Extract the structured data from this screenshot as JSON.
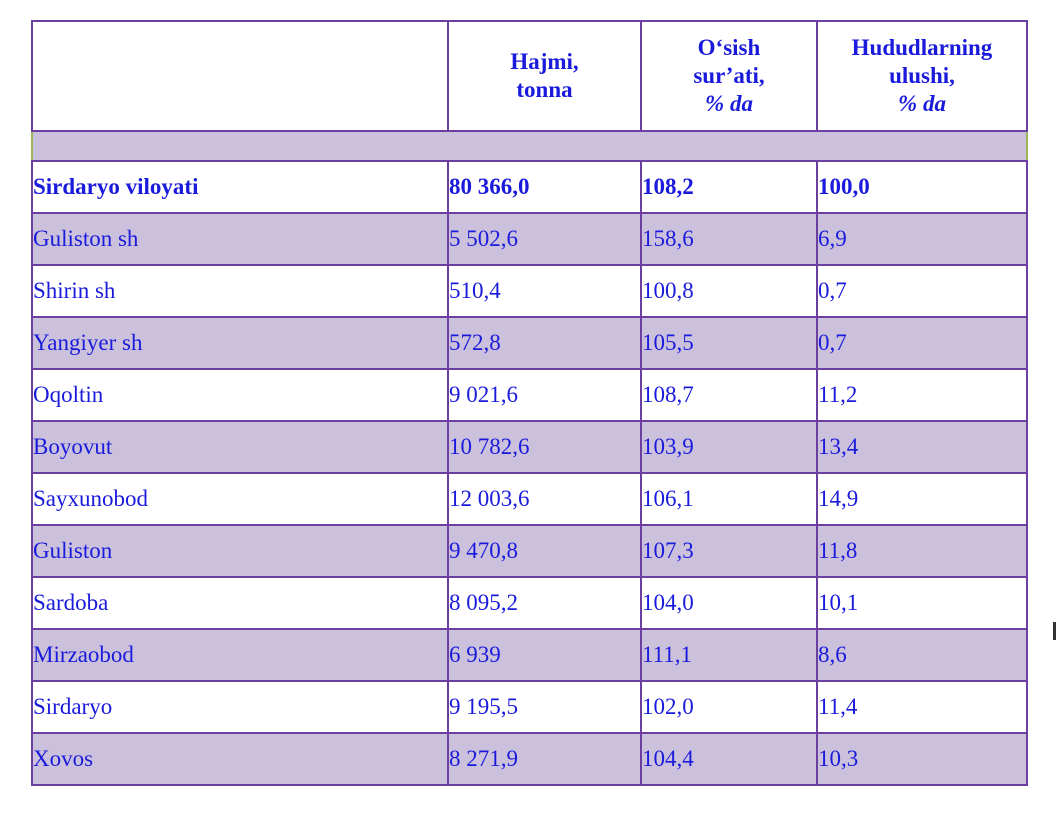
{
  "header": {
    "col_region": "",
    "col_volume": [
      "Hajmi,",
      "tonna"
    ],
    "col_growth": [
      "O‘sish",
      "sur’ati,",
      "% da"
    ],
    "col_share": [
      "Hududlarning",
      "ulushi,",
      "% da"
    ]
  },
  "rows": [
    {
      "name": "Sirdaryo viloyati",
      "volume": "80 366,0",
      "growth": "108,2",
      "share": "100,0"
    },
    {
      "name": "Guliston sh",
      "volume": "5 502,6",
      "growth": "158,6",
      "share": "6,9"
    },
    {
      "name": "Shirin sh",
      "volume": "510,4",
      "growth": "100,8",
      "share": "0,7"
    },
    {
      "name": "Yangiyer sh",
      "volume": "572,8",
      "growth": "105,5",
      "share": "0,7"
    },
    {
      "name": "Oqoltin",
      "volume": "9 021,6",
      "growth": "108,7",
      "share": "11,2"
    },
    {
      "name": "Boyovut",
      "volume": "10 782,6",
      "growth": "103,9",
      "share": "13,4"
    },
    {
      "name": "Sayxunobod",
      "volume": "12 003,6",
      "growth": "106,1",
      "share": "14,9"
    },
    {
      "name": "Guliston",
      "volume": "9 470,8",
      "growth": "107,3",
      "share": "11,8"
    },
    {
      "name": "Sardoba",
      "volume": "8 095,2",
      "growth": "104,0",
      "share": "10,1"
    },
    {
      "name": "Mirzaobod",
      "volume": "6 939",
      "growth": "111,1",
      "share": "8,6"
    },
    {
      "name": "Sirdaryo",
      "volume": "9 195,5",
      "growth": "102,0",
      "share": "11,4"
    },
    {
      "name": "Xovos",
      "volume": "8 271,9",
      "growth": "104,4",
      "share": "10,3"
    }
  ],
  "colors": {
    "text": "#1a1adc",
    "border": "#6b3fa0",
    "shade": "#ccc1dc"
  }
}
